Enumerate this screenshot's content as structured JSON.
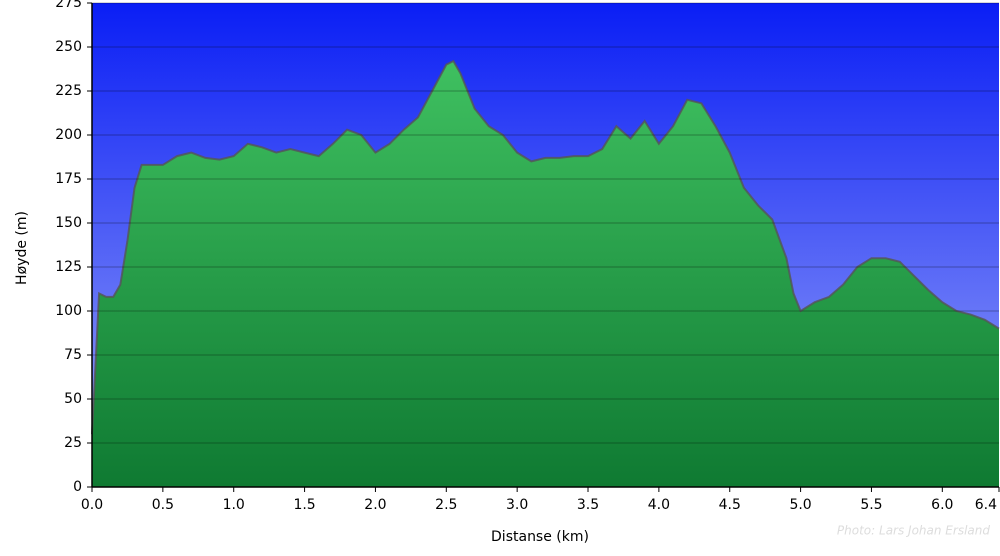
{
  "chart_data": {
    "type": "area",
    "xlabel": "Distanse   (km)",
    "ylabel": "Høyde (m)",
    "watermark": "Photo: Lars Johan Ersland",
    "x": [
      0.0,
      0.05,
      0.1,
      0.15,
      0.2,
      0.25,
      0.3,
      0.35,
      0.4,
      0.5,
      0.6,
      0.7,
      0.8,
      0.9,
      1.0,
      1.1,
      1.2,
      1.3,
      1.4,
      1.5,
      1.6,
      1.7,
      1.8,
      1.9,
      2.0,
      2.1,
      2.2,
      2.3,
      2.4,
      2.5,
      2.55,
      2.6,
      2.7,
      2.8,
      2.9,
      3.0,
      3.1,
      3.2,
      3.3,
      3.4,
      3.5,
      3.6,
      3.7,
      3.8,
      3.9,
      4.0,
      4.1,
      4.2,
      4.3,
      4.4,
      4.5,
      4.6,
      4.7,
      4.8,
      4.9,
      4.95,
      5.0,
      5.1,
      5.2,
      5.3,
      5.4,
      5.5,
      5.6,
      5.7,
      5.8,
      5.9,
      6.0,
      6.1,
      6.2,
      6.3,
      6.4
    ],
    "series": [
      {
        "color": "#22a84a",
        "values": [
          30,
          110,
          108,
          108,
          115,
          140,
          170,
          183,
          183,
          183,
          188,
          190,
          187,
          186,
          188,
          195,
          193,
          190,
          192,
          190,
          188,
          195,
          203,
          200,
          190,
          195,
          203,
          210,
          225,
          240,
          242,
          235,
          215,
          205,
          200,
          190,
          185,
          187,
          187,
          188,
          188,
          192,
          205,
          198,
          208,
          195,
          205,
          220,
          218,
          205,
          190,
          170,
          160,
          152,
          130,
          110,
          100,
          105,
          108,
          115,
          125,
          130,
          130,
          128,
          120,
          112,
          105,
          100,
          98,
          95,
          90
        ]
      }
    ],
    "xlim": [
      0,
      6.4
    ],
    "xticks": [
      {
        "value": 0,
        "label": "0.0"
      },
      0.5,
      {
        "value": 1,
        "label": "1.0"
      },
      1.5,
      {
        "value": 2,
        "label": "2.0"
      },
      2.5,
      {
        "value": 3,
        "label": "3.0"
      },
      3.5,
      {
        "value": 4,
        "label": "4.0"
      },
      4.5,
      {
        "value": 5,
        "label": "5.0"
      },
      5.5,
      {
        "value": 6,
        "label": "6.0"
      },
      6.4
    ],
    "ylim": [
      0,
      275
    ],
    "yticks": [
      0,
      25,
      50,
      75,
      100,
      125,
      150,
      175,
      200,
      225,
      250,
      275
    ],
    "grid": true
  }
}
